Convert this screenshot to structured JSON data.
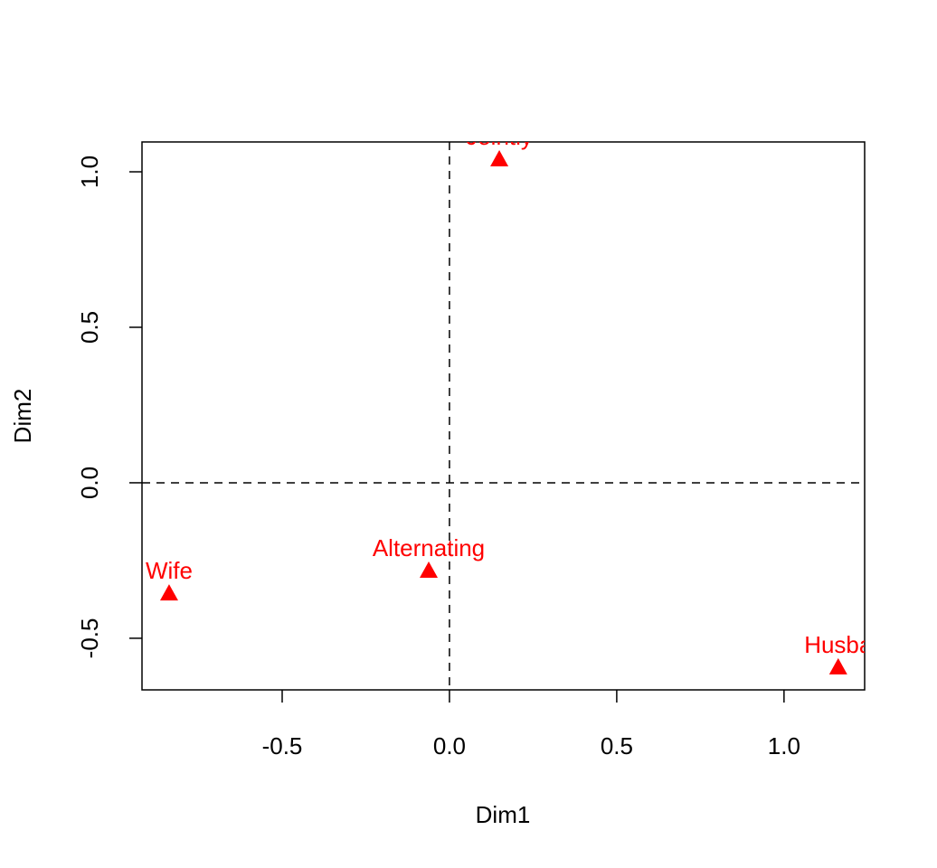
{
  "chart_data": {
    "type": "scatter",
    "xlabel": "Dim1",
    "ylabel": "Dim2",
    "series": [
      {
        "color": "#ff0000",
        "marker": "triangle",
        "labels": [
          "Wife",
          "Alternating",
          "Jointly",
          "Husba"
        ],
        "x": [
          -0.838,
          -0.062,
          0.149,
          1.162
        ],
        "values": [
          -0.358,
          -0.285,
          1.038,
          -0.596
        ]
      }
    ],
    "xlim": [
      -0.919,
      1.241
    ],
    "ylim": [
      -0.666,
      1.096
    ],
    "xticks": [
      -0.5,
      {
        "value": 0,
        "label": "0.0"
      },
      0.5,
      {
        "value": 1,
        "label": "1.0"
      }
    ],
    "yticks": [
      -0.5,
      {
        "value": 0,
        "label": "0.0"
      },
      0.5,
      {
        "value": 1,
        "label": "1.0"
      }
    ],
    "hline": 0,
    "vline": 0
  }
}
